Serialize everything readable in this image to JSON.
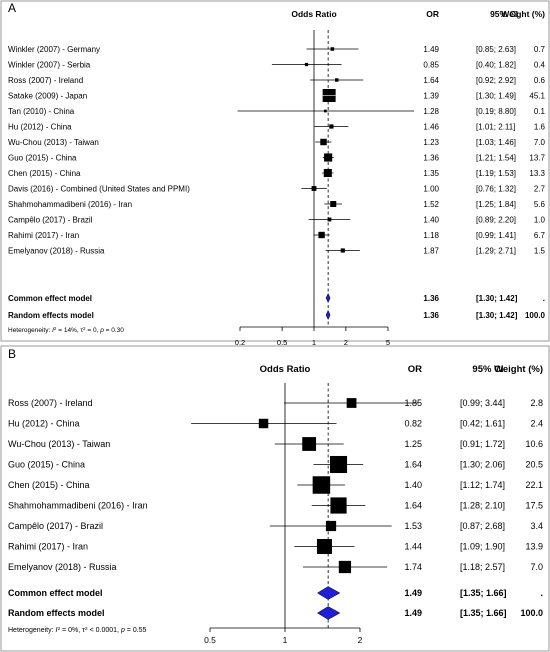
{
  "chart_data": [
    {
      "type": "forest",
      "panel": "A",
      "headers": {
        "axis": "Odds Ratio",
        "or": "OR",
        "ci": "95% CI",
        "weight": "Weight (%)"
      },
      "scale": "log",
      "xlim": [
        0.2,
        5
      ],
      "ticks": [
        "0.2",
        "0.5",
        "1",
        "2",
        "5"
      ],
      "tick_values": [
        0.2,
        0.5,
        1,
        2,
        5
      ],
      "studies": [
        {
          "label": "Winkler (2007) - Germany",
          "or": 1.49,
          "lo": 0.85,
          "hi": 2.63,
          "or_text": "1.49",
          "ci_text": "[0.85; 2.63]",
          "weight": 0.7,
          "weight_text": "0.7"
        },
        {
          "label": "Winkler (2007) - Serbia",
          "or": 0.85,
          "lo": 0.4,
          "hi": 1.82,
          "or_text": "0.85",
          "ci_text": "[0.40; 1.82]",
          "weight": 0.4,
          "weight_text": "0.4"
        },
        {
          "label": "Ross (2007) - Ireland",
          "or": 1.64,
          "lo": 0.92,
          "hi": 2.92,
          "or_text": "1.64",
          "ci_text": "[0.92; 2.92]",
          "weight": 0.6,
          "weight_text": "0.6"
        },
        {
          "label": "Satake (2009) - Japan",
          "or": 1.39,
          "lo": 1.3,
          "hi": 1.49,
          "or_text": "1.39",
          "ci_text": "[1.30; 1.49]",
          "weight": 45.1,
          "weight_text": "45.1"
        },
        {
          "label": "Tan (2010) - China",
          "or": 1.28,
          "lo": 0.19,
          "hi": 8.8,
          "or_text": "1.28",
          "ci_text": "[0.19; 8.80]",
          "weight": 0.1,
          "weight_text": "0.1"
        },
        {
          "label": "Hu (2012) - China",
          "or": 1.46,
          "lo": 1.01,
          "hi": 2.11,
          "or_text": "1.46",
          "ci_text": "[1.01; 2.11]",
          "weight": 1.6,
          "weight_text": "1.6"
        },
        {
          "label": "Wu-Chou (2013) - Taiwan",
          "or": 1.23,
          "lo": 1.03,
          "hi": 1.46,
          "or_text": "1.23",
          "ci_text": "[1.03; 1.46]",
          "weight": 7.0,
          "weight_text": "7.0"
        },
        {
          "label": "Guo (2015) - China",
          "or": 1.36,
          "lo": 1.21,
          "hi": 1.54,
          "or_text": "1.36",
          "ci_text": "[1.21; 1.54]",
          "weight": 13.7,
          "weight_text": "13.7"
        },
        {
          "label": "Chen (2015) - China",
          "or": 1.35,
          "lo": 1.19,
          "hi": 1.53,
          "or_text": "1.35",
          "ci_text": "[1.19; 1.53]",
          "weight": 13.3,
          "weight_text": "13.3"
        },
        {
          "label": "Davis (2016) - Combined (United States and PPMI)",
          "or": 1.0,
          "lo": 0.76,
          "hi": 1.32,
          "or_text": "1.00",
          "ci_text": "[0.76; 1.32]",
          "weight": 2.7,
          "weight_text": "2.7"
        },
        {
          "label": "Shahmohammadibeni (2016) - Iran",
          "or": 1.52,
          "lo": 1.25,
          "hi": 1.84,
          "or_text": "1.52",
          "ci_text": "[1.25; 1.84]",
          "weight": 5.6,
          "weight_text": "5.6"
        },
        {
          "label": "Campêlo (2017) - Brazil",
          "or": 1.4,
          "lo": 0.89,
          "hi": 2.2,
          "or_text": "1.40",
          "ci_text": "[0.89; 2.20]",
          "weight": 1.0,
          "weight_text": "1.0"
        },
        {
          "label": "Rahimi (2017) - Iran",
          "or": 1.18,
          "lo": 0.99,
          "hi": 1.41,
          "or_text": "1.18",
          "ci_text": "[0.99; 1.41]",
          "weight": 6.7,
          "weight_text": "6.7"
        },
        {
          "label": "Emelyanov (2018) - Russia",
          "or": 1.87,
          "lo": 1.29,
          "hi": 2.71,
          "or_text": "1.87",
          "ci_text": "[1.29; 2.71]",
          "weight": 1.5,
          "weight_text": "1.5"
        }
      ],
      "pooled": [
        {
          "label": "Common effect model",
          "or": 1.36,
          "lo": 1.3,
          "hi": 1.42,
          "or_text": "1.36",
          "ci_text": "[1.30; 1.42]",
          "weight_text": "."
        },
        {
          "label": "Random effects model",
          "or": 1.36,
          "lo": 1.3,
          "hi": 1.42,
          "or_text": "1.36",
          "ci_text": "[1.30; 1.42]",
          "weight_text": "100.0"
        }
      ],
      "heterogeneity": {
        "prefix": "Heterogeneity: ",
        "i2": "14%",
        "tau2_op": " = ",
        "tau2": "0",
        "p_op": " = ",
        "p": "0.30"
      },
      "colors": {
        "diamond_fill": "#1f1fd6",
        "marker": "#000000"
      }
    },
    {
      "type": "forest",
      "panel": "B",
      "headers": {
        "axis": "Odds Ratio",
        "or": "OR",
        "ci": "95% CI",
        "weight": "Weight (%)"
      },
      "scale": "log",
      "xlim": [
        0.5,
        2
      ],
      "ticks": [
        "0.5",
        "1",
        "2"
      ],
      "tick_values": [
        0.5,
        1,
        2
      ],
      "studies": [
        {
          "label": "Ross (2007) - Ireland",
          "or": 1.85,
          "lo": 0.99,
          "hi": 3.44,
          "or_text": "1.85",
          "ci_text": "[0.99; 3.44]",
          "weight": 2.8,
          "weight_text": "2.8"
        },
        {
          "label": "Hu (2012) - China",
          "or": 0.82,
          "lo": 0.42,
          "hi": 1.61,
          "or_text": "0.82",
          "ci_text": "[0.42; 1.61]",
          "weight": 2.4,
          "weight_text": "2.4"
        },
        {
          "label": "Wu-Chou (2013) - Taiwan",
          "or": 1.25,
          "lo": 0.91,
          "hi": 1.72,
          "or_text": "1.25",
          "ci_text": "[0.91; 1.72]",
          "weight": 10.6,
          "weight_text": "10.6"
        },
        {
          "label": "Guo (2015) - China",
          "or": 1.64,
          "lo": 1.3,
          "hi": 2.06,
          "or_text": "1.64",
          "ci_text": "[1.30; 2.06]",
          "weight": 20.5,
          "weight_text": "20.5"
        },
        {
          "label": "Chen (2015) - China",
          "or": 1.4,
          "lo": 1.12,
          "hi": 1.74,
          "or_text": "1.40",
          "ci_text": "[1.12; 1.74]",
          "weight": 22.1,
          "weight_text": "22.1"
        },
        {
          "label": "Shahmohammadibeni (2016) - Iran",
          "or": 1.64,
          "lo": 1.28,
          "hi": 2.1,
          "or_text": "1.64",
          "ci_text": "[1.28; 2.10]",
          "weight": 17.5,
          "weight_text": "17.5"
        },
        {
          "label": "Campêlo (2017) - Brazil",
          "or": 1.53,
          "lo": 0.87,
          "hi": 2.68,
          "or_text": "1.53",
          "ci_text": "[0.87; 2.68]",
          "weight": 3.4,
          "weight_text": "3.4"
        },
        {
          "label": "Rahimi (2017) - Iran",
          "or": 1.44,
          "lo": 1.09,
          "hi": 1.9,
          "or_text": "1.44",
          "ci_text": "[1.09; 1.90]",
          "weight": 13.9,
          "weight_text": "13.9"
        },
        {
          "label": "Emelyanov (2018) - Russia",
          "or": 1.74,
          "lo": 1.18,
          "hi": 2.57,
          "or_text": "1.74",
          "ci_text": "[1.18; 2.57]",
          "weight": 7.0,
          "weight_text": "7.0"
        }
      ],
      "pooled": [
        {
          "label": "Common effect model",
          "or": 1.49,
          "lo": 1.35,
          "hi": 1.66,
          "or_text": "1.49",
          "ci_text": "[1.35; 1.66]",
          "weight_text": "."
        },
        {
          "label": "Random effects model",
          "or": 1.49,
          "lo": 1.35,
          "hi": 1.66,
          "or_text": "1.49",
          "ci_text": "[1.35; 1.66]",
          "weight_text": "100.0"
        }
      ],
      "heterogeneity": {
        "prefix": "Heterogeneity: ",
        "i2": "0%",
        "tau2_op": " < ",
        "tau2": "0.0001",
        "p_op": " = ",
        "p": "0.55"
      },
      "colors": {
        "diamond_fill": "#1f1fd6",
        "marker": "#000000"
      }
    }
  ]
}
